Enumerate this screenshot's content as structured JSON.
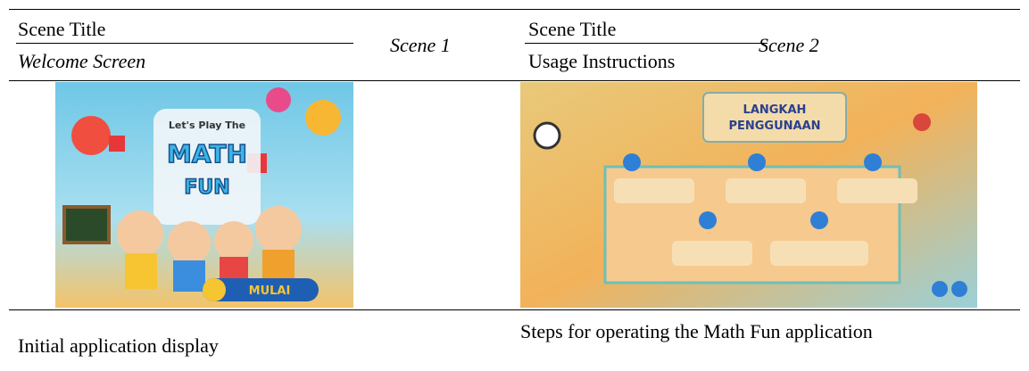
{
  "scenes": [
    {
      "title_label": "Scene Title",
      "title": "Welcome Screen",
      "scene": "Scene 1",
      "caption": "Initial application display",
      "image_texts": [
        "Let's Play The",
        "MATH",
        "FUN",
        "MULAI"
      ]
    },
    {
      "title_label": "Scene Title",
      "title": "Usage Instructions",
      "scene": "Scene 2",
      "caption": "Steps for operating the Math Fun application",
      "image_texts": [
        "LANGKAH",
        "PENGGUNAAN"
      ]
    }
  ]
}
